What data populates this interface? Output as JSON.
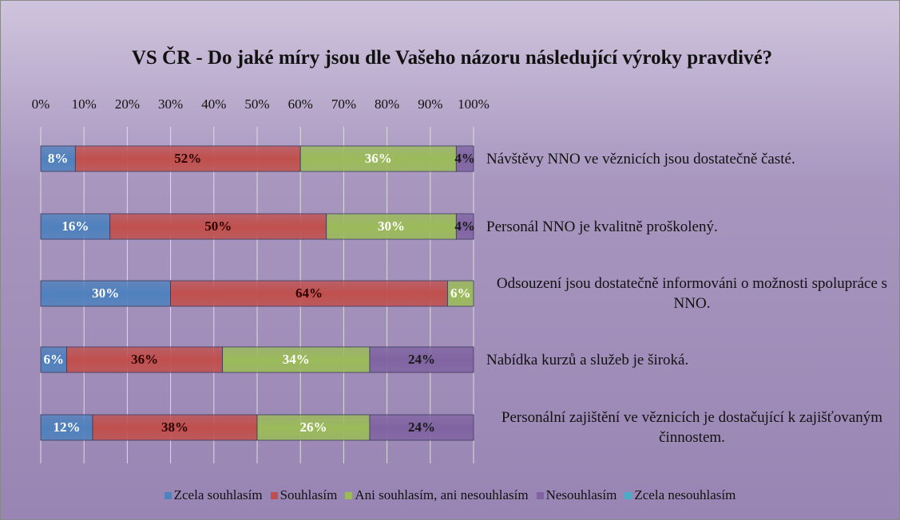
{
  "chart_data": {
    "type": "stacked_barh",
    "title": "VS ČR - Do jaké míry jsou dle Vašeho názoru následující výroky pravdivé?",
    "categories": [
      "Návštěvy NNO ve věznicích jsou dostatečně časté.",
      "Personál NNO je kvalitně proškolený.",
      "Odsouzení jsou dostatečně informováni o možnosti spolupráce s NNO.",
      "Nabídka kurzů a služeb je široká.",
      "Personální zajištění ve věznicích je dostačující k zajišťovaným činnostem."
    ],
    "series": [
      {
        "name": "Zcela souhlasím",
        "color": "#4f81bd",
        "values": [
          8,
          16,
          30,
          6,
          12
        ],
        "value_labels": [
          "8%",
          "16%",
          "30%",
          "6%",
          "12%"
        ]
      },
      {
        "name": "Souhlasím",
        "color": "#c0504d",
        "values": [
          52,
          50,
          64,
          36,
          38
        ],
        "value_labels": [
          "52%",
          "50%",
          "64%",
          "36%",
          "38%"
        ]
      },
      {
        "name": "Ani souhlasím, ani nesouhlasím",
        "color": "#9bbb59",
        "values": [
          36,
          30,
          6,
          34,
          26
        ],
        "value_labels": [
          "36%",
          "30%",
          "6%",
          "34%",
          "26%"
        ]
      },
      {
        "name": "Nesouhlasím",
        "color": "#8064a2",
        "values": [
          4,
          4,
          0,
          24,
          24
        ],
        "value_labels": [
          "4%",
          "4%",
          null,
          "24%",
          "24%"
        ]
      },
      {
        "name": "Zcela nesouhlasím",
        "color": "#4bacc6",
        "values": [
          0,
          0,
          0,
          0,
          0
        ]
      }
    ],
    "xlim": [
      0,
      100
    ],
    "xticks": [
      {
        "value": 0,
        "label": "0%"
      },
      {
        "value": 10,
        "label": "10%"
      },
      {
        "value": 20,
        "label": "20%"
      },
      {
        "value": 30,
        "label": "30%"
      },
      {
        "value": 40,
        "label": "40%"
      },
      {
        "value": 50,
        "label": "50%"
      },
      {
        "value": 60,
        "label": "60%"
      },
      {
        "value": 70,
        "label": "70%"
      },
      {
        "value": 80,
        "label": "80%"
      },
      {
        "value": 90,
        "label": "90%"
      },
      {
        "value": 100,
        "label": "100%"
      }
    ],
    "grid": true,
    "legend": "bottom"
  }
}
